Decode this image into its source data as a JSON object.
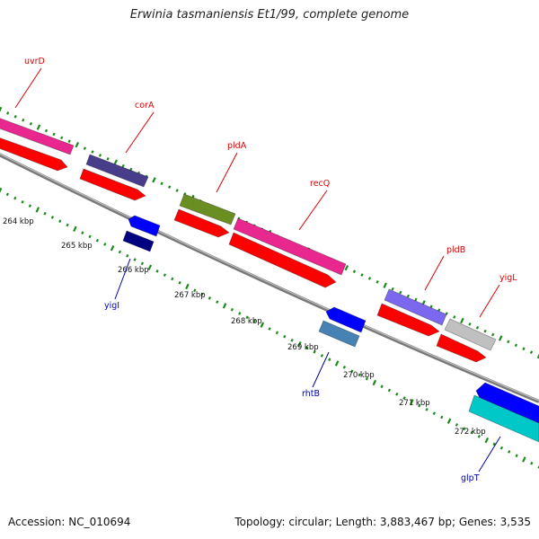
{
  "title": "Erwinia tasmaniensis Et1/99, complete genome",
  "footer": {
    "accession": "Accession: NC_010694",
    "summary": "Topology: circular; Length: 3,883,467 bp; Genes: 3,535"
  },
  "scale_labels": [
    "264 kbp",
    "265 kbp",
    "266 kbp",
    "267 kbp",
    "268 kbp",
    "269 kbp",
    "270 kbp",
    "271 kbp",
    "272 kbp"
  ],
  "genes": [
    {
      "name": "uvrD",
      "strand": "forward",
      "color": "#e8278f"
    },
    {
      "name": "corA",
      "strand": "forward",
      "color": "#483d8b"
    },
    {
      "name": "pldA",
      "strand": "forward",
      "color": "#6b8e23"
    },
    {
      "name": "recQ",
      "strand": "forward",
      "color": "#e8278f"
    },
    {
      "name": "pldB",
      "strand": "forward",
      "color": "#7b68ee"
    },
    {
      "name": "yigL",
      "strand": "forward",
      "color": "#c0c0c0"
    },
    {
      "name": "yigI",
      "strand": "reverse",
      "color": "#0000ff"
    },
    {
      "name": "rhtB",
      "strand": "reverse",
      "color": "#4682b4"
    },
    {
      "name": "glpT",
      "strand": "reverse",
      "color": "#00c8c8"
    }
  ],
  "colors": {
    "cds": "#ff0000",
    "forward_label": "#dd0000",
    "reverse_label": "#0000aa",
    "backbone": "#808080",
    "ticks": "#1a8c1a",
    "reverse_strand": "#0000ff",
    "reverse_strand_dark": "#000080"
  }
}
